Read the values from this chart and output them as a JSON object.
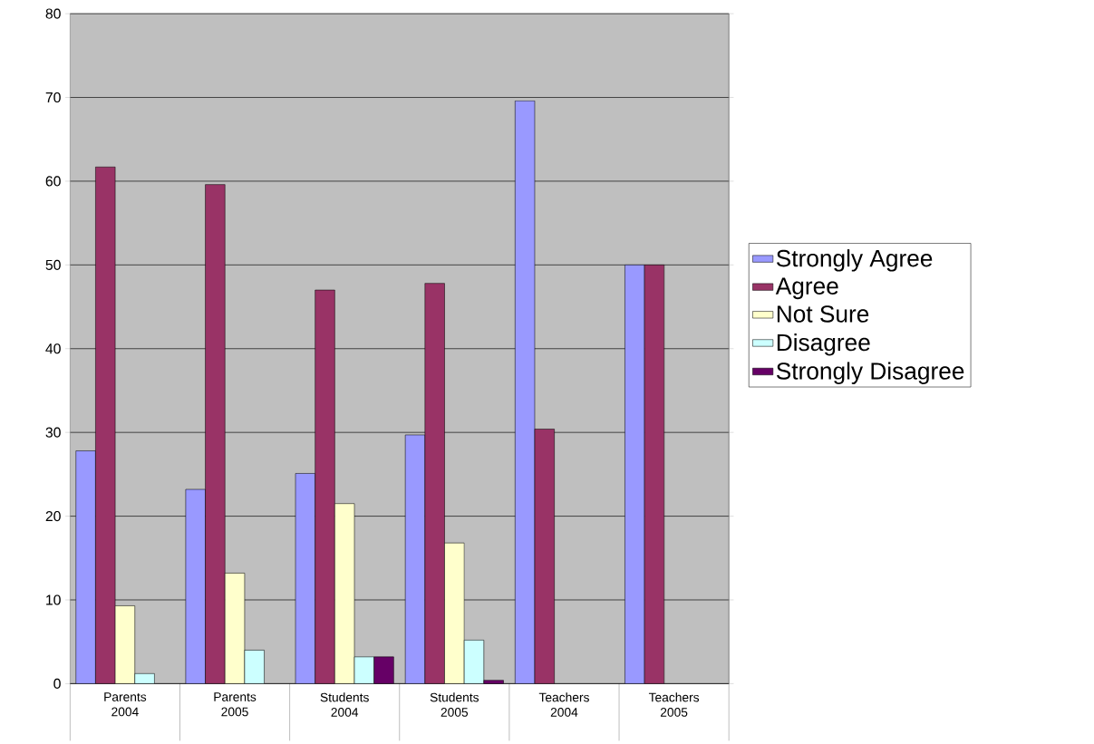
{
  "chart_data": {
    "type": "bar",
    "categories": [
      "Parents 2004",
      "Parents 2005",
      "Students 2004",
      "Students 2005",
      "Teachers 2004",
      "Teachers 2005"
    ],
    "series": [
      {
        "name": "Strongly Agree",
        "color": "#9999ff",
        "values": [
          27.8,
          23.2,
          25.1,
          29.7,
          69.6,
          50
        ]
      },
      {
        "name": "Agree",
        "color": "#993366",
        "values": [
          61.7,
          59.6,
          47.0,
          47.8,
          30.4,
          50
        ]
      },
      {
        "name": "Not Sure",
        "color": "#ffffcc",
        "values": [
          9.3,
          13.2,
          21.5,
          16.8,
          null,
          null
        ]
      },
      {
        "name": "Disagree",
        "color": "#ccffff",
        "values": [
          1.2,
          4.0,
          3.2,
          5.2,
          null,
          null
        ]
      },
      {
        "name": "Strongly Disagree",
        "color": "#660066",
        "values": [
          null,
          null,
          3.2,
          0.4,
          null,
          null
        ]
      }
    ],
    "ylim": [
      0,
      80
    ],
    "yticks": [
      0,
      10,
      20,
      30,
      40,
      50,
      60,
      70,
      80
    ],
    "grid": "y",
    "legend": "right"
  }
}
